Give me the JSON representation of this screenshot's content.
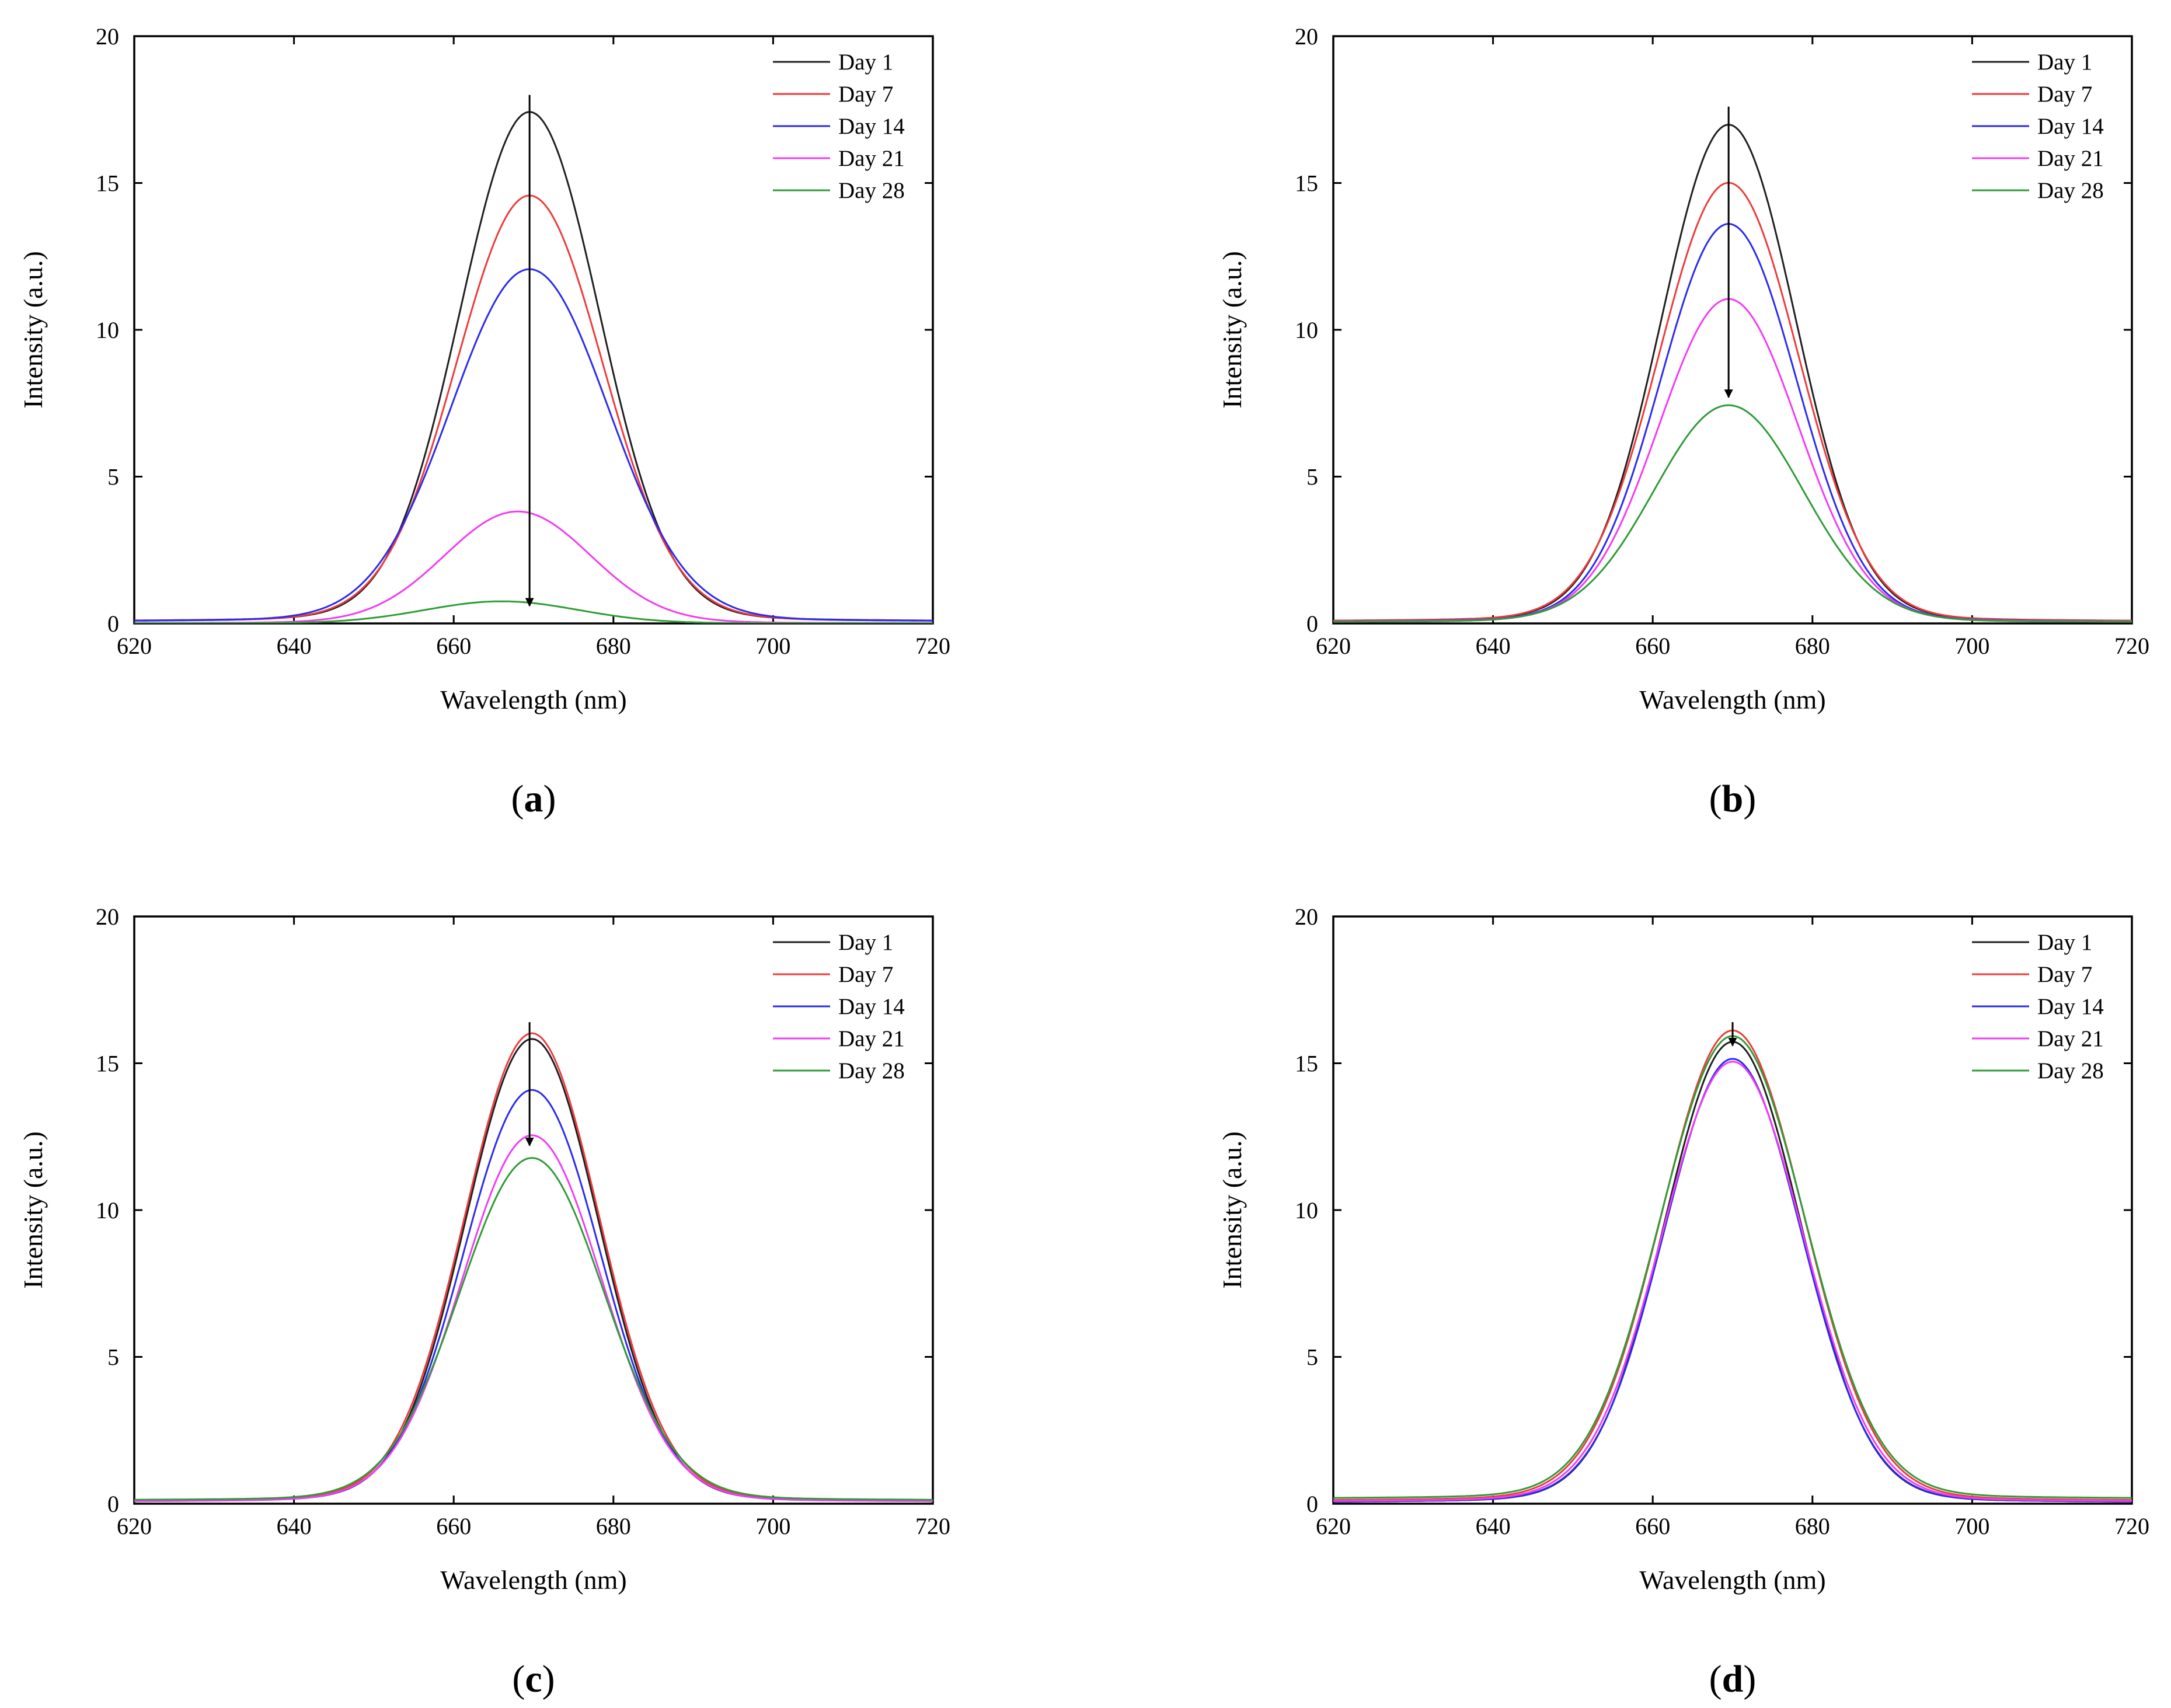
{
  "colors": {
    "day1": "#1f1f1f",
    "day7": "#ee3b3b",
    "day14": "#2b2bee",
    "day21": "#f23cf2",
    "day28": "#2e9c36",
    "axis": "#000000",
    "arrow": "#000000"
  },
  "chart_data": [
    {
      "type": "line",
      "panel": "a",
      "caption": "(a)",
      "caption_open": "(",
      "caption_letter": "a",
      "caption_close": ")",
      "xlabel": "Wavelength (nm)",
      "ylabel": "Intensity (a.u.)",
      "xlim": [
        620,
        720
      ],
      "ylim": [
        0,
        20
      ],
      "xticks": [
        620,
        640,
        660,
        680,
        700,
        720
      ],
      "yticks": [
        0,
        5,
        10,
        15,
        20
      ],
      "legend_position": "top-right",
      "arrow": {
        "x": 669.5,
        "from": 18.0,
        "to": 0.6
      },
      "series": [
        {
          "name": "Day 1",
          "color_key": "day1",
          "peak_x": 669.5,
          "peak_y": 18.05,
          "sigma": 8.6,
          "baseline": 0.05
        },
        {
          "name": "Day 7",
          "color_key": "day7",
          "peak_x": 669.5,
          "peak_y": 15.1,
          "sigma": 9.0,
          "baseline": 0.05
        },
        {
          "name": "Day 14",
          "color_key": "day14",
          "peak_x": 669.5,
          "peak_y": 12.5,
          "sigma": 9.7,
          "baseline": 0.05
        },
        {
          "name": "Day 21",
          "color_key": "day21",
          "peak_x": 668.0,
          "peak_y": 3.95,
          "sigma": 9.0,
          "baseline": 0.0
        },
        {
          "name": "Day 28",
          "color_key": "day28",
          "peak_x": 666.0,
          "peak_y": 0.78,
          "sigma": 9.5,
          "baseline": 0.0
        }
      ]
    },
    {
      "type": "line",
      "panel": "b",
      "caption": "(b)",
      "caption_open": "(",
      "caption_letter": "b",
      "caption_close": ")",
      "xlabel": "Wavelength (nm)",
      "ylabel": "Intensity (a.u.)",
      "xlim": [
        620,
        720
      ],
      "ylim": [
        0,
        20
      ],
      "xticks": [
        620,
        640,
        660,
        680,
        700,
        720
      ],
      "yticks": [
        0,
        5,
        10,
        15,
        20
      ],
      "legend_position": "top-right",
      "arrow": {
        "x": 669.5,
        "from": 17.6,
        "to": 7.7
      },
      "series": [
        {
          "name": "Day 1",
          "color_key": "day1",
          "peak_x": 669.5,
          "peak_y": 17.6,
          "sigma": 8.3,
          "baseline": 0.05
        },
        {
          "name": "Day 7",
          "color_key": "day7",
          "peak_x": 669.5,
          "peak_y": 15.55,
          "sigma": 8.6,
          "baseline": 0.05
        },
        {
          "name": "Day 14",
          "color_key": "day14",
          "peak_x": 669.5,
          "peak_y": 14.1,
          "sigma": 8.4,
          "baseline": 0.03
        },
        {
          "name": "Day 21",
          "color_key": "day21",
          "peak_x": 669.5,
          "peak_y": 11.45,
          "sigma": 8.6,
          "baseline": 0.03
        },
        {
          "name": "Day 28",
          "color_key": "day28",
          "peak_x": 669.5,
          "peak_y": 7.7,
          "sigma": 9.2,
          "baseline": 0.03
        }
      ]
    },
    {
      "type": "line",
      "panel": "c",
      "caption": "(c)",
      "caption_open": "(",
      "caption_letter": "c",
      "caption_close": ")",
      "xlabel": "Wavelength (nm)",
      "ylabel": "Intensity (a.u.)",
      "xlim": [
        620,
        720
      ],
      "ylim": [
        0,
        20
      ],
      "xticks": [
        620,
        640,
        660,
        680,
        700,
        720
      ],
      "yticks": [
        0,
        5,
        10,
        15,
        20
      ],
      "legend_position": "top-right",
      "arrow": {
        "x": 669.5,
        "from": 16.4,
        "to": 12.2
      },
      "series": [
        {
          "name": "Day 1",
          "color_key": "day1",
          "peak_x": 669.8,
          "peak_y": 16.4,
          "sigma": 8.2,
          "baseline": 0.05
        },
        {
          "name": "Day 7",
          "color_key": "day7",
          "peak_x": 669.8,
          "peak_y": 16.6,
          "sigma": 8.3,
          "baseline": 0.08
        },
        {
          "name": "Day 14",
          "color_key": "day14",
          "peak_x": 669.8,
          "peak_y": 14.6,
          "sigma": 8.4,
          "baseline": 0.05
        },
        {
          "name": "Day 21",
          "color_key": "day21",
          "peak_x": 669.8,
          "peak_y": 13.0,
          "sigma": 8.6,
          "baseline": 0.05
        },
        {
          "name": "Day 28",
          "color_key": "day28",
          "peak_x": 669.8,
          "peak_y": 12.2,
          "sigma": 8.9,
          "baseline": 0.1
        }
      ]
    },
    {
      "type": "line",
      "panel": "d",
      "caption": "(d)",
      "caption_open": "(",
      "caption_letter": "d",
      "caption_close": ")",
      "xlabel": "Wavelength (nm)",
      "ylabel": "Intensity (a.u.)",
      "xlim": [
        620,
        720
      ],
      "ylim": [
        0,
        20
      ],
      "xticks": [
        620,
        640,
        660,
        680,
        700,
        720
      ],
      "yticks": [
        0,
        5,
        10,
        15,
        20
      ],
      "legend_position": "top-right",
      "arrow": {
        "x": 670.0,
        "from": 16.4,
        "to": 15.6
      },
      "series": [
        {
          "name": "Day 1",
          "color_key": "day1",
          "peak_x": 670.0,
          "peak_y": 16.3,
          "sigma": 8.4,
          "baseline": 0.03
        },
        {
          "name": "Day 7",
          "color_key": "day7",
          "peak_x": 670.0,
          "peak_y": 16.7,
          "sigma": 8.8,
          "baseline": 0.08
        },
        {
          "name": "Day 14",
          "color_key": "day14",
          "peak_x": 670.0,
          "peak_y": 15.7,
          "sigma": 8.5,
          "baseline": 0.03
        },
        {
          "name": "Day 21",
          "color_key": "day21",
          "peak_x": 670.0,
          "peak_y": 15.6,
          "sigma": 8.7,
          "baseline": 0.05
        },
        {
          "name": "Day 28",
          "color_key": "day28",
          "peak_x": 670.0,
          "peak_y": 16.5,
          "sigma": 8.9,
          "baseline": 0.15
        }
      ]
    }
  ]
}
